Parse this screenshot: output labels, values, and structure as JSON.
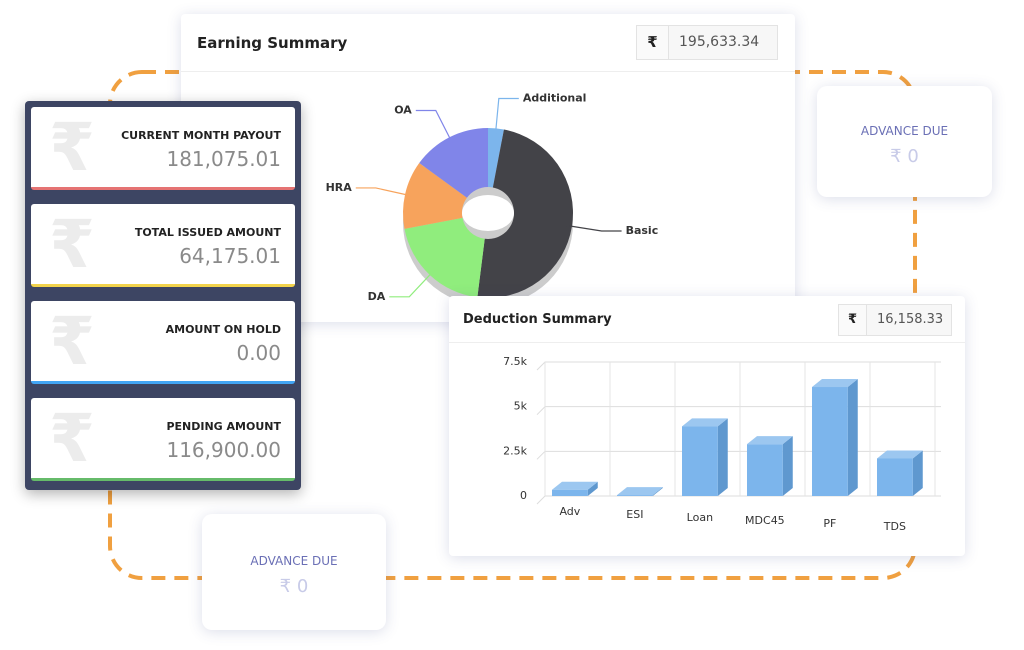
{
  "currency": "₹",
  "earning_summary": {
    "title": "Earning Summary",
    "total": "195,633.34"
  },
  "deduction_summary": {
    "title": "Deduction Summary",
    "total": "16,158.33"
  },
  "payout_cards": [
    {
      "label": "CURRENT MONTH PAYOUT",
      "value": "181,075.01",
      "color": "#e57373"
    },
    {
      "label": "TOTAL ISSUED AMOUNT",
      "value": "64,175.01",
      "color": "#f2d34c"
    },
    {
      "label": "AMOUNT ON HOLD",
      "value": "0.00",
      "color": "#42a5f5"
    },
    {
      "label": "PENDING AMOUNT",
      "value": "116,900.00",
      "color": "#66bb6a"
    }
  ],
  "advance_due_cards": [
    {
      "label": "ADVANCE DUE",
      "value": "₹ 0"
    },
    {
      "label": "ADVANCE DUE",
      "value": "₹ 0"
    }
  ],
  "chart_data": [
    {
      "type": "pie",
      "categories": [
        "Additional",
        "Basic",
        "DA",
        "HRA",
        "OA"
      ],
      "values": [
        3,
        49,
        20,
        13,
        15
      ],
      "colors": [
        "#7cb5ec",
        "#434348",
        "#90ed7d",
        "#f7a35c",
        "#8085e9"
      ]
    },
    {
      "type": "bar",
      "categories": [
        "Adv",
        "ESI",
        "Loan",
        "MDC45",
        "PF",
        "TDS"
      ],
      "values": [
        350,
        50,
        3900,
        2900,
        6100,
        2100
      ],
      "color": "#7cb5ec",
      "ylim": [
        0,
        7500
      ],
      "yticks": [
        0,
        {
          "value": 2500,
          "label": "2.5k"
        },
        {
          "value": 5000,
          "label": "5k"
        },
        {
          "value": 7500,
          "label": "7.5k"
        }
      ],
      "grid": true
    }
  ]
}
